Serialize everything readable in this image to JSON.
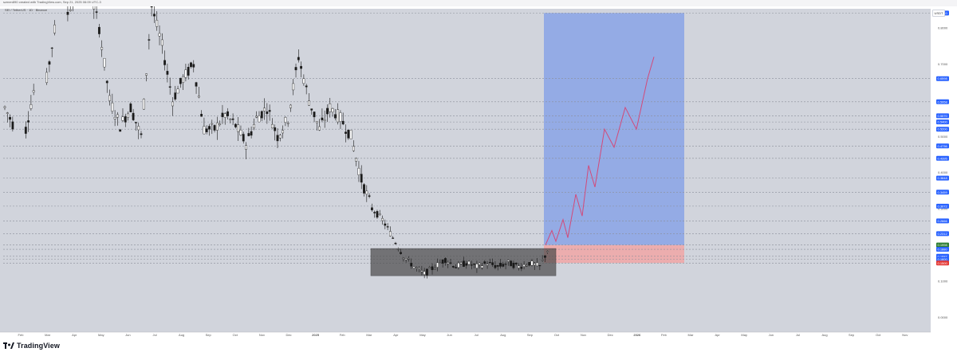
{
  "header": {
    "credit": "szmen890 created with TradingView.com, Sep 21, 2025 06:09 UTC-3",
    "symbol_line": "SEI / TetherUS · 1D · Binance",
    "currency": "USDT"
  },
  "branding": {
    "logo_text": "TradingView"
  },
  "colors": {
    "background": "#d1d4dc",
    "candle": "#1a1a1a",
    "grid_dash": "#8a8e99",
    "target_zone": "#7f9ee8",
    "stop_zone": "#f2a3a3",
    "range_box": "#4a4a4a",
    "projection": "#d24a7a",
    "price_tag_blue": "#2962ff",
    "price_tag_green": "#2e7d32",
    "price_tag_red": "#e53935"
  },
  "chart_data": {
    "type": "candlestick",
    "title": "",
    "xlabel": "",
    "ylabel": "",
    "ylim": [
      -0.2,
      0.9
    ],
    "x_ticks": [
      "Feb",
      "Mar",
      "Apr",
      "May",
      "Jun",
      "Jul",
      "Aug",
      "Sep",
      "Oct",
      "Nov",
      "Dec",
      "2025",
      "Feb",
      "Mar",
      "Apr",
      "May",
      "Jun",
      "Jul",
      "Aug",
      "Sep",
      "Oct",
      "Nov",
      "Dec",
      "2026",
      "Feb",
      "Mar",
      "Apr",
      "May",
      "Jun",
      "Jul",
      "Aug",
      "Sep",
      "Oct",
      "Nov",
      "Dec"
    ],
    "y_axis_labels": [
      "0.8000",
      "0.7000",
      "0.6000",
      "0.5000",
      "0.4000",
      "0.3000",
      "0.2000",
      "0.1000",
      "0.0000",
      "-0.1000"
    ],
    "y_axis_values": [
      0.8,
      0.7,
      0.6,
      0.5,
      0.4,
      0.3,
      0.2,
      0.1,
      0.0,
      -0.1
    ],
    "price_levels": [
      {
        "label": "0.8410",
        "value": 0.841,
        "tag": "blue"
      },
      {
        "label": "0.6598",
        "value": 0.6598,
        "tag": "blue"
      },
      {
        "label": "0.5958",
        "value": 0.5958,
        "tag": "blue"
      },
      {
        "label": "0.5570",
        "value": 0.557,
        "tag": "blue"
      },
      {
        "label": "0.5400",
        "value": 0.54,
        "tag": "blue"
      },
      {
        "label": "0.5200",
        "value": 0.52,
        "tag": "blue"
      },
      {
        "label": "0.4736",
        "value": 0.4736,
        "tag": "blue"
      },
      {
        "label": "0.4395",
        "value": 0.4395,
        "tag": "blue"
      },
      {
        "label": "0.3848",
        "value": 0.3848,
        "tag": "blue"
      },
      {
        "label": "0.3459",
        "value": 0.3459,
        "tag": "blue"
      },
      {
        "label": "0.3072",
        "value": 0.3072,
        "tag": "blue"
      },
      {
        "label": "0.2666",
        "value": 0.2666,
        "tag": "blue"
      },
      {
        "label": "0.2312",
        "value": 0.2312,
        "tag": "blue"
      },
      {
        "label": "0.1998",
        "value": 0.1998,
        "tag": "green"
      },
      {
        "label": "0.1880",
        "value": 0.188,
        "tag": "blue"
      },
      {
        "label": "0.1687",
        "value": 0.1687,
        "tag": "blue"
      },
      {
        "label": "0.1600",
        "value": 0.16,
        "tag": "blue"
      },
      {
        "label": "0.1500",
        "value": 0.15,
        "tag": "red"
      }
    ],
    "price_series": [
      {
        "x": 0,
        "y": 0.58
      },
      {
        "x": 2,
        "y": 0.52
      },
      {
        "x": 4,
        "y": 0.66
      },
      {
        "x": 6,
        "y": 0.84
      },
      {
        "x": 8,
        "y": 0.92
      },
      {
        "x": 9,
        "y": 0.8
      },
      {
        "x": 10,
        "y": 0.6
      },
      {
        "x": 11,
        "y": 0.53
      },
      {
        "x": 12,
        "y": 0.58
      },
      {
        "x": 13,
        "y": 0.5
      },
      {
        "x": 14,
        "y": 0.86
      },
      {
        "x": 15,
        "y": 0.75
      },
      {
        "x": 16,
        "y": 0.6
      },
      {
        "x": 17,
        "y": 0.66
      },
      {
        "x": 18,
        "y": 0.7
      },
      {
        "x": 19,
        "y": 0.52
      },
      {
        "x": 20,
        "y": 0.52
      },
      {
        "x": 21,
        "y": 0.56
      },
      {
        "x": 22,
        "y": 0.53
      },
      {
        "x": 23,
        "y": 0.48
      },
      {
        "x": 24,
        "y": 0.55
      },
      {
        "x": 25,
        "y": 0.58
      },
      {
        "x": 26,
        "y": 0.5
      },
      {
        "x": 27,
        "y": 0.55
      },
      {
        "x": 28,
        "y": 0.72
      },
      {
        "x": 29,
        "y": 0.6
      },
      {
        "x": 30,
        "y": 0.52
      },
      {
        "x": 31,
        "y": 0.58
      },
      {
        "x": 32,
        "y": 0.55
      },
      {
        "x": 33,
        "y": 0.5
      },
      {
        "x": 34,
        "y": 0.38
      },
      {
        "x": 35,
        "y": 0.3
      },
      {
        "x": 36,
        "y": 0.27
      },
      {
        "x": 37,
        "y": 0.22
      },
      {
        "x": 38,
        "y": 0.17
      },
      {
        "x": 39,
        "y": 0.14
      },
      {
        "x": 40,
        "y": 0.12
      },
      {
        "x": 41,
        "y": 0.14
      },
      {
        "x": 42,
        "y": 0.16
      },
      {
        "x": 43,
        "y": 0.14
      },
      {
        "x": 44,
        "y": 0.15
      },
      {
        "x": 45,
        "y": 0.14
      },
      {
        "x": 46,
        "y": 0.15
      },
      {
        "x": 47,
        "y": 0.14
      },
      {
        "x": 48,
        "y": 0.15
      },
      {
        "x": 49,
        "y": 0.14
      },
      {
        "x": 50,
        "y": 0.15
      },
      {
        "x": 51,
        "y": 0.14
      },
      {
        "x": 52,
        "y": 0.2
      }
    ],
    "consolidation_range": {
      "x_from": "Mar 2025",
      "x_to": "Sep 2025",
      "y_low": 0.115,
      "y_high": 0.19
    },
    "target_zone": {
      "x_from": "Sep 2025",
      "x_to": "Jan 2026",
      "y_low": 0.1998,
      "y_high": 0.841
    },
    "stop_zone": {
      "x_from": "Sep 2025",
      "x_to": "Jan 2026",
      "y_low": 0.15,
      "y_high": 0.1998
    },
    "projection_target": 0.72
  }
}
